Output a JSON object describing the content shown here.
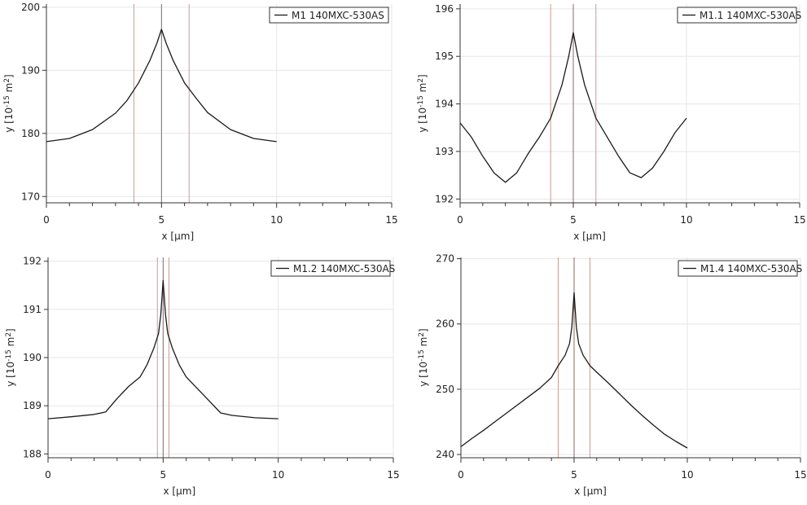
{
  "colors": {
    "axis": "#333333",
    "grid": "#e6e6e6",
    "line": "#1a1a1a",
    "marker": "#c89a9a",
    "marker_center": "#8a6a6a",
    "plot_bg": "#ffffff"
  },
  "chart_data": [
    {
      "type": "line",
      "title": "",
      "legend": "M1 140MXC-530AS",
      "legend_position": "top-right",
      "xlabel": "x [µm]",
      "ylabel": "y [10",
      "ylabel_exp": "-15",
      "ylabel_unit": " m",
      "ylabel_unit_exp": "2",
      "ylabel_close": "]",
      "xlim": [
        0,
        15
      ],
      "ylim": [
        169,
        200.5
      ],
      "xticks": [
        0,
        5,
        10,
        15
      ],
      "xtick_labels": [
        "0",
        "5",
        "10",
        "15"
      ],
      "yticks": [
        170,
        180,
        190,
        200
      ],
      "ytick_labels": [
        "170",
        "180",
        "190",
        "200"
      ],
      "grid": true,
      "markers": [
        3.8,
        5.0,
        6.2
      ],
      "series": [
        {
          "name": "M1 140MXC-530AS",
          "x": [
            0,
            1,
            2,
            3,
            3.5,
            4,
            4.5,
            4.8,
            5,
            5.2,
            5.5,
            6,
            6.5,
            7,
            8,
            9,
            10
          ],
          "y": [
            178.7,
            179.2,
            180.6,
            183.2,
            185.2,
            188.0,
            191.6,
            194.3,
            196.5,
            194.3,
            191.6,
            188.0,
            185.6,
            183.3,
            180.6,
            179.2,
            178.7
          ]
        }
      ]
    },
    {
      "type": "line",
      "title": "",
      "legend": "M1.1 140MXC-530AS",
      "legend_position": "top-right",
      "xlabel": "x [µm]",
      "ylabel": "y [10",
      "ylabel_exp": "-15",
      "ylabel_unit": " m",
      "ylabel_unit_exp": "2",
      "ylabel_close": "]",
      "xlim": [
        0,
        15
      ],
      "ylim": [
        191.92,
        196.1
      ],
      "xticks": [
        0,
        5,
        10,
        15
      ],
      "xtick_labels": [
        "0",
        "5",
        "10",
        "15"
      ],
      "yticks": [
        192,
        193,
        194,
        195,
        196
      ],
      "ytick_labels": [
        "192",
        "193",
        "194",
        "195",
        "196"
      ],
      "grid": true,
      "markers": [
        4.0,
        5.0,
        6.0
      ],
      "series": [
        {
          "name": "M1.1 140MXC-530AS",
          "x": [
            0,
            0.5,
            1,
            1.5,
            2,
            2.5,
            3,
            3.5,
            4,
            4.5,
            4.8,
            5,
            5.2,
            5.5,
            6,
            6.5,
            7,
            7.5,
            8,
            8.5,
            9,
            9.5,
            10
          ],
          "y": [
            193.6,
            193.3,
            192.9,
            192.55,
            192.35,
            192.55,
            192.95,
            193.3,
            193.7,
            194.4,
            195.0,
            195.5,
            195.0,
            194.4,
            193.7,
            193.3,
            192.9,
            192.55,
            192.45,
            192.65,
            193.0,
            193.4,
            193.7
          ]
        }
      ]
    },
    {
      "type": "line",
      "title": "",
      "legend": "M1.2 140MXC-530AS",
      "legend_position": "top-right",
      "xlabel": "x [µm]",
      "ylabel": "y [10",
      "ylabel_exp": "-15",
      "ylabel_unit": " m",
      "ylabel_unit_exp": "2",
      "ylabel_close": "]",
      "xlim": [
        0,
        15
      ],
      "ylim": [
        187.92,
        192.08
      ],
      "xticks": [
        0,
        5,
        10,
        15
      ],
      "xtick_labels": [
        "0",
        "5",
        "10",
        "15"
      ],
      "yticks": [
        188,
        189,
        190,
        191,
        192
      ],
      "ytick_labels": [
        "188",
        "189",
        "190",
        "191",
        "192"
      ],
      "grid": true,
      "markers": [
        4.75,
        5.0,
        5.25
      ],
      "series": [
        {
          "name": "M1.2 140MXC-530AS",
          "x": [
            0,
            1,
            2,
            2.5,
            3,
            3.5,
            4,
            4.3,
            4.6,
            4.8,
            4.9,
            5,
            5.1,
            5.2,
            5.4,
            5.7,
            6,
            6.5,
            7,
            7.5,
            8,
            9,
            10
          ],
          "y": [
            188.73,
            188.77,
            188.82,
            188.87,
            189.15,
            189.4,
            189.6,
            189.85,
            190.2,
            190.5,
            190.9,
            191.6,
            190.9,
            190.5,
            190.2,
            189.85,
            189.6,
            189.35,
            189.1,
            188.85,
            188.8,
            188.75,
            188.73
          ]
        }
      ]
    },
    {
      "type": "line",
      "title": "",
      "legend": "M1.4 140MXC-530AS",
      "legend_position": "top-right",
      "xlabel": "x [µm]",
      "ylabel": "y [10",
      "ylabel_exp": "-15",
      "ylabel_unit": " m",
      "ylabel_unit_exp": "2",
      "ylabel_close": "]",
      "xlim": [
        0,
        15
      ],
      "ylim": [
        239.5,
        270.2
      ],
      "xticks": [
        0,
        5,
        10,
        15
      ],
      "xtick_labels": [
        "0",
        "5",
        "10",
        "15"
      ],
      "yticks": [
        240,
        250,
        260,
        270
      ],
      "ytick_labels": [
        "240",
        "250",
        "260",
        "270"
      ],
      "grid": true,
      "markers": [
        4.3,
        5.0,
        5.7
      ],
      "series": [
        {
          "name": "M1.4 140MXC-530AS",
          "x": [
            0,
            0.5,
            1,
            1.5,
            2,
            2.5,
            3,
            3.5,
            4,
            4.3,
            4.6,
            4.8,
            4.9,
            5,
            5.1,
            5.2,
            5.4,
            5.7,
            6,
            6.5,
            7,
            7.5,
            8,
            8.5,
            9,
            9.5,
            10
          ],
          "y": [
            241.2,
            242.5,
            243.7,
            245.0,
            246.3,
            247.6,
            248.9,
            250.2,
            251.8,
            253.6,
            255.2,
            257.0,
            259.5,
            264.8,
            259.5,
            257.0,
            255.2,
            253.6,
            252.6,
            251.0,
            249.3,
            247.6,
            246.0,
            244.5,
            243.1,
            242.0,
            241.0
          ]
        }
      ]
    }
  ]
}
